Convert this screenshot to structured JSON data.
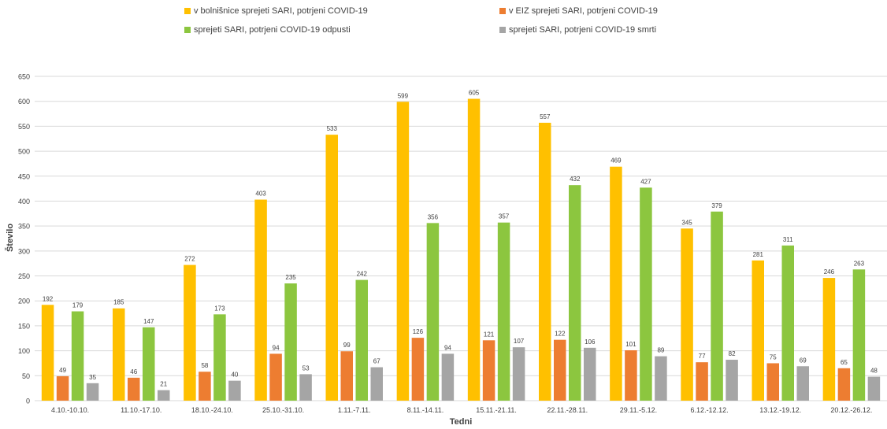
{
  "chart_data": {
    "type": "bar",
    "title": "",
    "xlabel": "Tedni",
    "ylabel": "Število",
    "ylim": [
      0,
      650
    ],
    "yticks": [
      0,
      50,
      100,
      150,
      200,
      250,
      300,
      350,
      400,
      450,
      500,
      550,
      600,
      650
    ],
    "grid": true,
    "legend_position": "top",
    "categories": [
      "4.10.-10.10.",
      "11.10.-17.10.",
      "18.10.-24.10.",
      "25.10.-31.10.",
      "1.11.-7.11.",
      "8.11.-14.11.",
      "15.11.-21.11.",
      "22.11.-28.11.",
      "29.11.-5.12.",
      "6.12.-12.12.",
      "13.12.-19.12.",
      "20.12.-26.12."
    ],
    "series": [
      {
        "name": "v bolnišnice sprejeti SARI, potrjeni COVID-19",
        "color": "#FFC000",
        "values": [
          192,
          185,
          272,
          403,
          533,
          599,
          605,
          557,
          469,
          345,
          281,
          246
        ]
      },
      {
        "name": "v EIZ sprejeti SARI, potrjeni COVID-19",
        "color": "#ED7D31",
        "values": [
          49,
          46,
          58,
          94,
          99,
          126,
          121,
          122,
          101,
          77,
          75,
          65
        ]
      },
      {
        "name": "sprejeti SARI, potrjeni COVID-19 odpusti",
        "color": "#8CC63F",
        "values": [
          179,
          147,
          173,
          235,
          242,
          356,
          357,
          432,
          427,
          379,
          311,
          263
        ]
      },
      {
        "name": "sprejeti SARI, potrjeni COVID-19 smrti",
        "color": "#A5A5A5",
        "values": [
          35,
          21,
          40,
          53,
          67,
          94,
          107,
          106,
          89,
          82,
          69,
          48
        ]
      }
    ]
  }
}
